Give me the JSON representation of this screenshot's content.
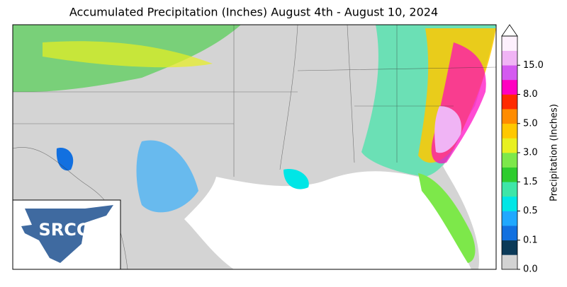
{
  "title": "Accumulated Precipitation (Inches) August 4th - August 10, 2024",
  "logo": "SRCC",
  "colorbar": {
    "label": "Precipitation (Inches)",
    "colors": [
      "#d3d3d3",
      "#0b3a58",
      "#1270e0",
      "#20a8ff",
      "#00e6e6",
      "#3ee6a8",
      "#2ecc2e",
      "#7de84a",
      "#e8f020",
      "#ffc800",
      "#ff8c00",
      "#ff2a00",
      "#ff00c0",
      "#d45af0",
      "#f0b4f5",
      "#fdf0fd"
    ],
    "ticks": [
      {
        "value": 0,
        "label": "0.0"
      },
      {
        "value": 0.1,
        "label": "0.1"
      },
      {
        "value": 0.5,
        "label": "0.5"
      },
      {
        "value": 1.5,
        "label": "1.5"
      },
      {
        "value": 3,
        "label": "3.0"
      },
      {
        "value": 5,
        "label": "5.0"
      },
      {
        "value": 8,
        "label": "8.0"
      },
      {
        "value": 15,
        "label": "15.0"
      }
    ]
  }
}
